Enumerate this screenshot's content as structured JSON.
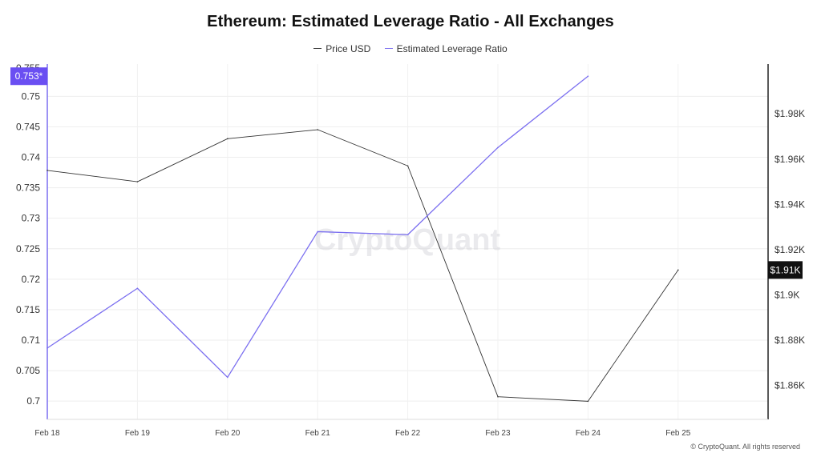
{
  "chart_data": {
    "type": "line",
    "title": "Ethereum: Estimated Leverage Ratio - All Exchanges",
    "categories": [
      "Feb 18",
      "Feb 19",
      "Feb 20",
      "Feb 21",
      "Feb 22",
      "Feb 23",
      "Feb 24",
      "Feb 25"
    ],
    "series": [
      {
        "name": "Price USD",
        "axis": "right",
        "color": "#333333",
        "values": [
          1955,
          1950,
          1969,
          1973,
          1957,
          1855,
          1853,
          1911
        ]
      },
      {
        "name": "Estimated Leverage Ratio",
        "axis": "left",
        "color": "#7b6ff0",
        "values": [
          0.7087,
          0.7185,
          0.7039,
          0.7278,
          0.7273,
          0.7416,
          0.7533,
          null
        ]
      }
    ],
    "y_left": {
      "ylim": [
        0.697,
        0.7553
      ],
      "ticks": [
        0.7,
        0.705,
        0.71,
        0.715,
        0.72,
        0.725,
        0.73,
        0.735,
        0.74,
        0.745,
        0.75
      ],
      "tick_labels": [
        "0.7",
        "0.705",
        "0.71",
        "0.715",
        "0.72",
        "0.725",
        "0.73",
        "0.735",
        "0.74",
        "0.745",
        "0.75"
      ],
      "top_label": "0.755",
      "current_value_label": "0.753*",
      "current_value": 0.7533
    },
    "y_right": {
      "ylim": [
        1845,
        2002
      ],
      "ticks": [
        1860,
        1880,
        1900,
        1920,
        1940,
        1960,
        1980
      ],
      "tick_labels": [
        "$1.86K",
        "$1.88K",
        "$1.9K",
        "$1.92K",
        "$1.94K",
        "$1.96K",
        "$1.98K"
      ],
      "current_value_label": "$1.91K",
      "current_value": 1911
    },
    "grid": true,
    "legend_position": "top-center",
    "watermark": "CryptoQuant"
  },
  "footer": {
    "copyright": "© CryptoQuant. All rights reserved"
  }
}
